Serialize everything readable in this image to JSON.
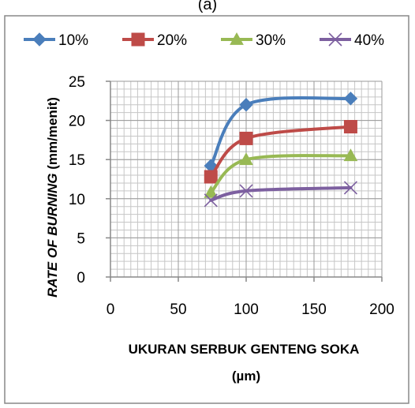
{
  "panel_label": "(a)",
  "colors": {
    "series": [
      "#4a7ebb",
      "#be4b48",
      "#98b954",
      "#7d60a0"
    ],
    "grid": "#c6c6c6",
    "axis": "#888888",
    "frame": "#888888"
  },
  "chart_data": {
    "type": "line",
    "title": "",
    "xlabel": "UKURAN SERBUK GENTENG SOKA",
    "xlabel_unit": "(µm)",
    "ylabel_italic": "RATE OF BURNING",
    "ylabel_unit": "(mm/menit)",
    "xlim": [
      0,
      200
    ],
    "ylim": [
      0,
      25
    ],
    "xticks": [
      0,
      50,
      100,
      150,
      200
    ],
    "yticks": [
      0,
      5,
      10,
      15,
      20,
      25
    ],
    "grid": true,
    "legend": "top",
    "smooth": true,
    "series": [
      {
        "name": "10%",
        "marker": "diamond",
        "x": [
          74,
          100,
          177
        ],
        "y": [
          14.2,
          22.0,
          22.8
        ]
      },
      {
        "name": "20%",
        "marker": "square",
        "x": [
          74,
          100,
          177
        ],
        "y": [
          12.8,
          17.7,
          19.2
        ]
      },
      {
        "name": "30%",
        "marker": "triangle",
        "x": [
          74,
          100,
          177
        ],
        "y": [
          10.8,
          15.0,
          15.5
        ]
      },
      {
        "name": "40%",
        "marker": "x",
        "x": [
          74,
          100,
          177
        ],
        "y": [
          9.8,
          11.0,
          11.4
        ]
      }
    ]
  }
}
